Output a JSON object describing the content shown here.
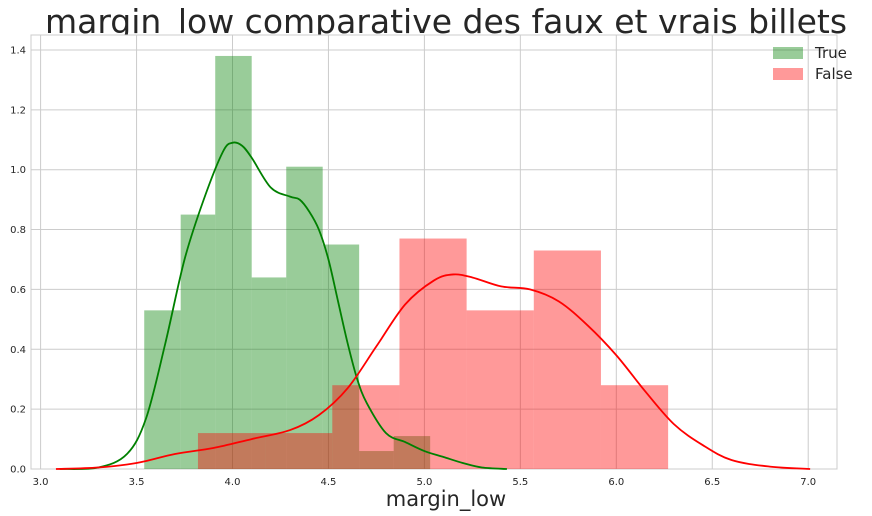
{
  "chart_data": {
    "type": "bar",
    "title": "margin_low comparative des faux et vrais billets",
    "xlabel": "margin_low",
    "ylabel": "",
    "xlim": [
      2.95,
      7.15
    ],
    "ylim": [
      0,
      1.45
    ],
    "xticks": [
      "3.0",
      "3.5",
      "4.0",
      "4.5",
      "5.0",
      "5.5",
      "6.0",
      "6.5",
      "7.0"
    ],
    "yticks": [
      "0.0",
      "0.2",
      "0.4",
      "0.6",
      "0.8",
      "1.0",
      "1.2",
      "1.4"
    ],
    "grid": true,
    "legend_position": "top-right",
    "series": [
      {
        "name": "True",
        "color": "#008000",
        "bin_edges": [
          3.54,
          3.73,
          3.91,
          4.1,
          4.28,
          4.47,
          4.66,
          4.84,
          5.03
        ],
        "values": [
          0.53,
          0.85,
          1.38,
          0.64,
          1.01,
          0.75,
          0.06,
          0.11
        ],
        "kde": {
          "x": [
            3.1,
            3.3,
            3.45,
            3.55,
            3.65,
            3.75,
            3.85,
            3.95,
            4.0,
            4.05,
            4.1,
            4.2,
            4.3,
            4.35,
            4.4,
            4.45,
            4.5,
            4.55,
            4.6,
            4.65,
            4.7,
            4.8,
            4.9,
            5.0,
            5.1,
            5.2,
            5.3,
            5.43
          ],
          "y": [
            0,
            0.005,
            0.05,
            0.17,
            0.42,
            0.7,
            0.9,
            1.06,
            1.09,
            1.08,
            1.04,
            0.94,
            0.91,
            0.9,
            0.86,
            0.8,
            0.7,
            0.56,
            0.42,
            0.3,
            0.22,
            0.12,
            0.09,
            0.06,
            0.04,
            0.02,
            0.005,
            0
          ]
        }
      },
      {
        "name": "False",
        "color": "#ff0000",
        "bin_edges": [
          3.82,
          4.17,
          4.52,
          4.87,
          5.22,
          5.57,
          5.92,
          6.27
        ],
        "values": [
          0.12,
          0.12,
          0.28,
          0.77,
          0.53,
          0.73,
          0.28
        ],
        "kde": {
          "x": [
            3.08,
            3.3,
            3.5,
            3.7,
            3.9,
            4.1,
            4.3,
            4.45,
            4.6,
            4.75,
            4.9,
            5.05,
            5.15,
            5.25,
            5.4,
            5.55,
            5.7,
            5.85,
            6.0,
            6.15,
            6.3,
            6.45,
            6.6,
            6.8,
            7.01
          ],
          "y": [
            0,
            0.005,
            0.02,
            0.05,
            0.07,
            0.1,
            0.13,
            0.18,
            0.27,
            0.41,
            0.55,
            0.63,
            0.65,
            0.64,
            0.61,
            0.6,
            0.56,
            0.48,
            0.38,
            0.26,
            0.15,
            0.08,
            0.03,
            0.008,
            0
          ]
        }
      }
    ]
  }
}
